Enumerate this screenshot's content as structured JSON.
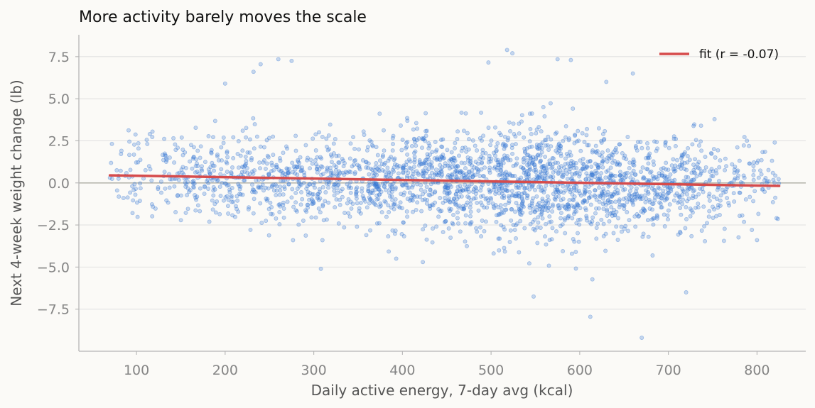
{
  "chart_data": {
    "type": "scatter",
    "title": "More activity barely moves the scale",
    "xlabel": "Daily active energy, 7-day avg (kcal)",
    "ylabel": "Next 4-week weight change (lb)",
    "xlim": [
      35,
      855
    ],
    "ylim": [
      -10.0,
      8.8
    ],
    "x_ticks": [
      100,
      200,
      300,
      400,
      500,
      600,
      700,
      800
    ],
    "x_tick_labels": [
      "100",
      "200",
      "300",
      "400",
      "500",
      "600",
      "700",
      "800"
    ],
    "y_ticks": [
      7.5,
      5.0,
      2.5,
      0.0,
      -2.5,
      -5.0,
      -7.5
    ],
    "y_tick_labels": [
      "7.5",
      "5.0",
      "2.5",
      "0.0",
      "−2.5",
      "−5.0",
      "−7.5"
    ],
    "grid": "horizontal",
    "zero_line": true,
    "legend": {
      "position": "top-right",
      "entries": [
        "fit (r = -0.07)"
      ]
    },
    "series": [
      {
        "kind": "scatter",
        "n_points": 2600,
        "x_range": [
          70,
          825
        ],
        "y_range": [
          -9.2,
          7.9
        ],
        "density_peak_x": 555,
        "values_sample": [
          [
            70,
            0.3
          ],
          [
            92,
            2.45
          ],
          [
            115,
            2.9
          ],
          [
            200,
            5.9
          ],
          [
            232,
            6.6
          ],
          [
            240,
            7.05
          ],
          [
            260,
            7.35
          ],
          [
            275,
            7.25
          ],
          [
            308,
            -5.1
          ],
          [
            393,
            -4.5
          ],
          [
            423,
            -4.7
          ],
          [
            497,
            7.15
          ],
          [
            518,
            7.9
          ],
          [
            524,
            7.7
          ],
          [
            548,
            -6.75
          ],
          [
            575,
            7.35
          ],
          [
            590,
            7.3
          ],
          [
            612,
            -7.95
          ],
          [
            630,
            6.0
          ],
          [
            660,
            6.5
          ],
          [
            670,
            -9.2
          ],
          [
            720,
            -6.5
          ],
          [
            800,
            -3.4
          ],
          [
            820,
            2.4
          ]
        ]
      },
      {
        "name": "fit (r = -0.07)",
        "kind": "line",
        "x": [
          70,
          825
        ],
        "values": [
          0.45,
          -0.18
        ]
      }
    ],
    "colors": {
      "points": "#3a7bd5",
      "fit": "#d64b4b",
      "grid": "#e2e2e2",
      "zero_line": "#b8b8b0",
      "axis": "#b5b5b5",
      "tick_text": "#858585",
      "label_text": "#555555",
      "title_text": "#111111"
    }
  }
}
